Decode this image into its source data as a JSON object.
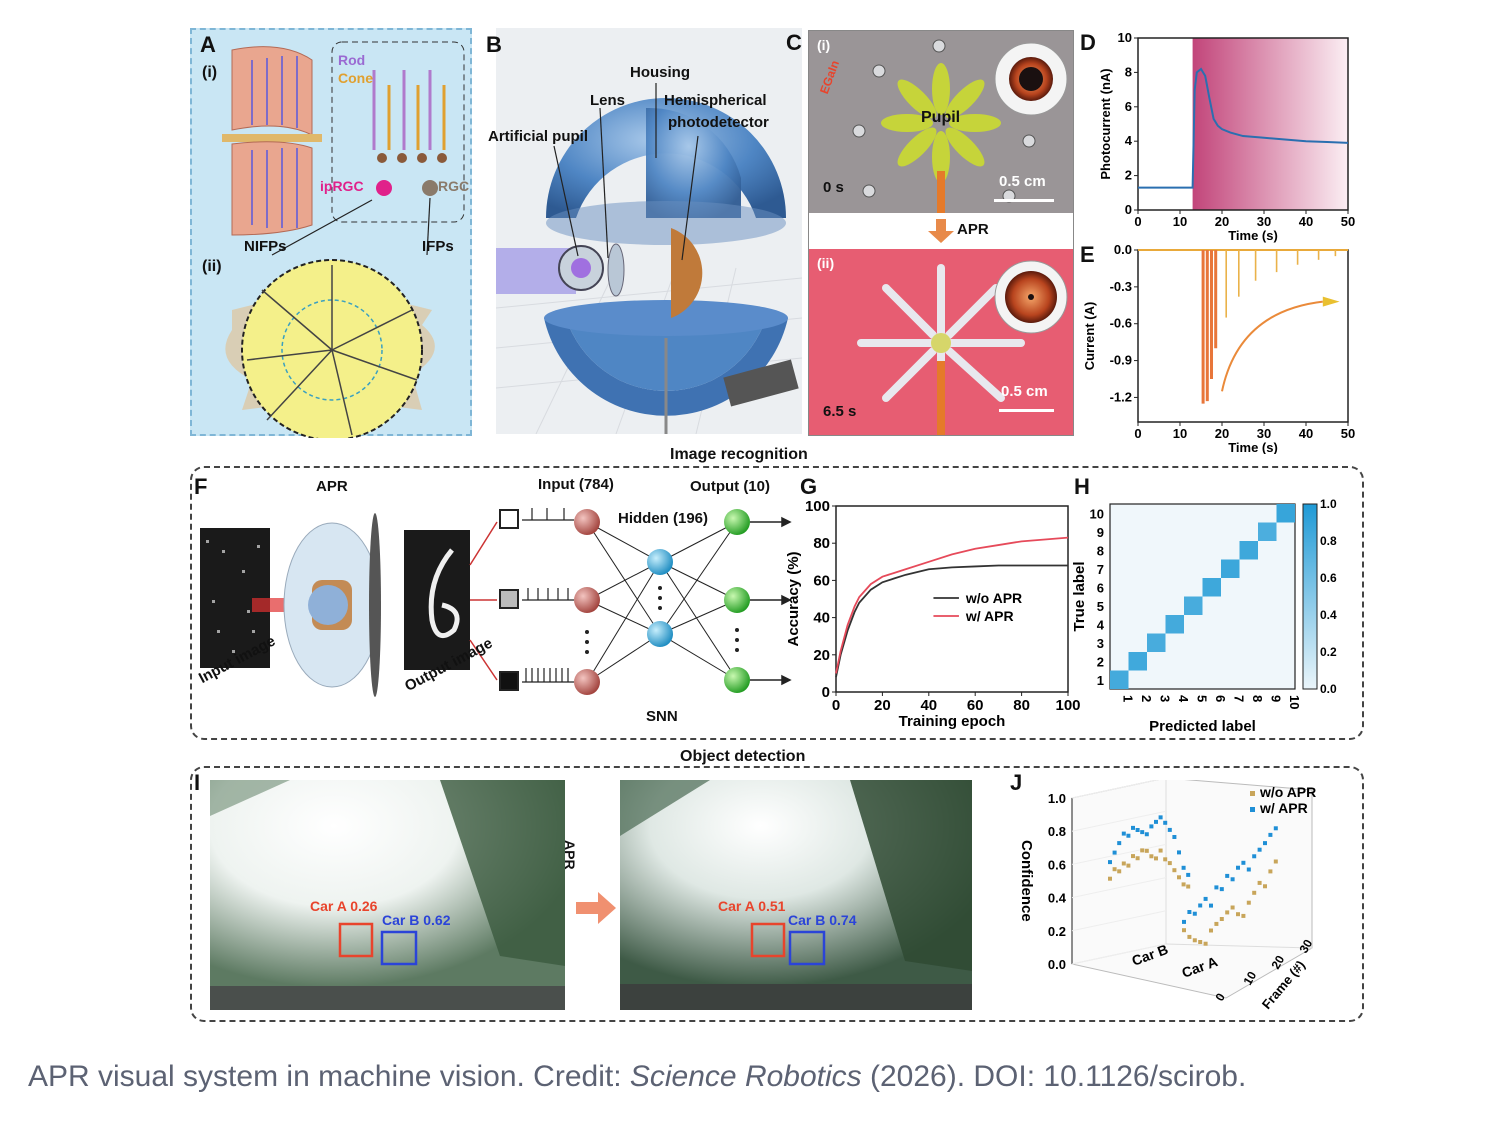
{
  "figure": {
    "panel_letters": {
      "A": "A",
      "B": "B",
      "C": "C",
      "D": "D",
      "E": "E",
      "F": "F",
      "G": "G",
      "H": "H",
      "I": "I",
      "J": "J"
    },
    "panelA": {
      "sub_i": "(i)",
      "sub_ii": "(ii)",
      "rod": "Rod",
      "cone": "Cone",
      "iprgc": "ipRGC",
      "rgc": "RGC",
      "nifps": "NIFPs",
      "ifps": "IFPs"
    },
    "panelB": {
      "housing": "Housing",
      "lens": "Lens",
      "hemispherical": "Hemispherical",
      "photodetector": "photodetector",
      "artificial_pupil": "Artificial pupil"
    },
    "panelC": {
      "sub_i": "(i)",
      "sub_ii": "(ii)",
      "egain": "EGaIn",
      "pupil": "Pupil",
      "time_0": "0 s",
      "time_65": "6.5 s",
      "scale_1": "0.5 cm",
      "scale_2": "0.5 cm",
      "apr": "APR"
    },
    "section_titles": {
      "image_recognition": "Image recognition",
      "object_detection": "Object detection"
    },
    "panelF": {
      "apr": "APR",
      "input_image": "Input image",
      "output_image": "Output image",
      "input_layer": "Input (784)",
      "hidden_layer": "Hidden (196)",
      "output_layer": "Output (10)",
      "snn": "SNN"
    },
    "panelI": {
      "arrow_label": "APR",
      "left_car_a": "Car A 0.26",
      "left_car_b": "Car B 0.62",
      "right_car_a": "Car A 0.51",
      "right_car_b": "Car B 0.74"
    },
    "colors": {
      "egain_red": "#e8442c",
      "car_a_red": "#e8442c",
      "car_b_blue": "#2b44d8",
      "apr_red": "#e64a5a",
      "woapr_black": "#333333",
      "heat_blue": "#1f9ad6"
    }
  },
  "chart_data": [
    {
      "id": "D",
      "type": "line",
      "xlabel": "Time (s)",
      "ylabel": "Photocurrent (nA)",
      "xlim": [
        0,
        50
      ],
      "ylim": [
        0,
        10
      ],
      "xticks": [
        "0",
        "10",
        "20",
        "30",
        "40",
        "50"
      ],
      "yticks": [
        "0",
        "2",
        "4",
        "6",
        "8",
        "10"
      ],
      "series": [
        {
          "name": "photocurrent",
          "x": [
            0,
            13,
            13.5,
            14,
            15,
            16,
            17,
            18,
            19,
            20,
            22,
            25,
            30,
            35,
            40,
            45,
            50
          ],
          "y": [
            1.3,
            1.3,
            7.0,
            8.0,
            8.2,
            7.8,
            6.5,
            5.3,
            4.9,
            4.7,
            4.5,
            4.3,
            4.2,
            4.1,
            4.0,
            3.95,
            3.9
          ]
        }
      ]
    },
    {
      "id": "E",
      "type": "line",
      "xlabel": "Time (s)",
      "ylabel": "Current (A)",
      "xlim": [
        0,
        50
      ],
      "ylim": [
        -1.4,
        0.0
      ],
      "xticks": [
        "0",
        "10",
        "20",
        "30",
        "40",
        "50"
      ],
      "yticks": [
        "0.0",
        "-0.3",
        "-0.6",
        "-0.9",
        "-1.2"
      ],
      "spikes": [
        {
          "t": 15.5,
          "min": -1.25
        },
        {
          "t": 16.5,
          "min": -1.23
        },
        {
          "t": 17.5,
          "min": -1.05
        },
        {
          "t": 18.5,
          "min": -0.8
        },
        {
          "t": 21,
          "min": -0.55
        },
        {
          "t": 24,
          "min": -0.38
        },
        {
          "t": 28,
          "min": -0.25
        },
        {
          "t": 33,
          "min": -0.18
        },
        {
          "t": 38,
          "min": -0.12
        },
        {
          "t": 43,
          "min": -0.08
        },
        {
          "t": 47,
          "min": -0.05
        }
      ]
    },
    {
      "id": "G",
      "type": "line",
      "xlabel": "Training epoch",
      "ylabel": "Accuracy (%)",
      "xlim": [
        0,
        100
      ],
      "ylim": [
        0,
        100
      ],
      "xticks": [
        "0",
        "20",
        "40",
        "60",
        "80",
        "100"
      ],
      "yticks": [
        "0",
        "20",
        "40",
        "60",
        "80",
        "100"
      ],
      "x": [
        0,
        2,
        5,
        8,
        10,
        15,
        20,
        25,
        30,
        40,
        50,
        60,
        70,
        80,
        90,
        100
      ],
      "series": [
        {
          "name": "w/o APR",
          "color": "#333333",
          "values": [
            8,
            20,
            33,
            43,
            48,
            55,
            59,
            61,
            63,
            66,
            67,
            67.5,
            68,
            68,
            68,
            68
          ]
        },
        {
          "name": "w/ APR",
          "color": "#e64a5a",
          "values": [
            10,
            22,
            36,
            46,
            51,
            58,
            62,
            64,
            66,
            70,
            74,
            77,
            79,
            81,
            82,
            83
          ]
        }
      ]
    },
    {
      "id": "H",
      "type": "heatmap",
      "xlabel": "Predicted label",
      "ylabel": "True label",
      "categories": [
        "1",
        "2",
        "3",
        "4",
        "5",
        "6",
        "7",
        "8",
        "9",
        "10"
      ],
      "colorbar_ticks": [
        "0.0",
        "0.2",
        "0.4",
        "0.6",
        "0.8",
        "1.0"
      ],
      "diagonal": [
        0.82,
        0.84,
        0.8,
        0.82,
        0.8,
        0.85,
        0.86,
        0.85,
        0.78,
        0.88
      ]
    },
    {
      "id": "J",
      "type": "scatter",
      "zlabel": "Confidence",
      "frame_label": "Frame (#)",
      "zticks": [
        "0.0",
        "0.2",
        "0.4",
        "0.6",
        "0.8",
        "1.0"
      ],
      "frame_ticks": [
        "0",
        "10",
        "20",
        "30"
      ],
      "groups": [
        "Car B",
        "Car A"
      ],
      "legend": [
        "w/o APR",
        "w/ APR"
      ],
      "series": [
        {
          "name": "w/o APR",
          "color": "#c8a55a",
          "car_b": [
            0.55,
            0.6,
            0.58,
            0.62,
            0.6,
            0.65,
            0.63,
            0.67,
            0.66,
            0.62,
            0.6,
            0.64,
            0.58,
            0.55,
            0.5,
            0.45,
            0.4,
            0.38
          ],
          "car_a": [
            0.3,
            0.25,
            0.22,
            0.2,
            0.18,
            0.25,
            0.28,
            0.3,
            0.33,
            0.35,
            0.3,
            0.28,
            0.35,
            0.4,
            0.45,
            0.42,
            0.5,
            0.55
          ]
        },
        {
          "name": "w/ APR",
          "color": "#1f8fd6",
          "car_b": [
            0.65,
            0.7,
            0.75,
            0.8,
            0.78,
            0.82,
            0.8,
            0.78,
            0.76,
            0.8,
            0.82,
            0.84,
            0.8,
            0.75,
            0.7,
            0.6,
            0.5,
            0.45
          ],
          "car_a": [
            0.35,
            0.4,
            0.38,
            0.42,
            0.45,
            0.4,
            0.5,
            0.48,
            0.55,
            0.52,
            0.58,
            0.6,
            0.55,
            0.62,
            0.65,
            0.68,
            0.72,
            0.75
          ]
        }
      ]
    }
  ],
  "caption": {
    "prefix": "APR visual system in machine vision. Credit: ",
    "journal": "Science Robotics",
    "suffix": " (2026). DOI: 10.1126/scirob."
  }
}
